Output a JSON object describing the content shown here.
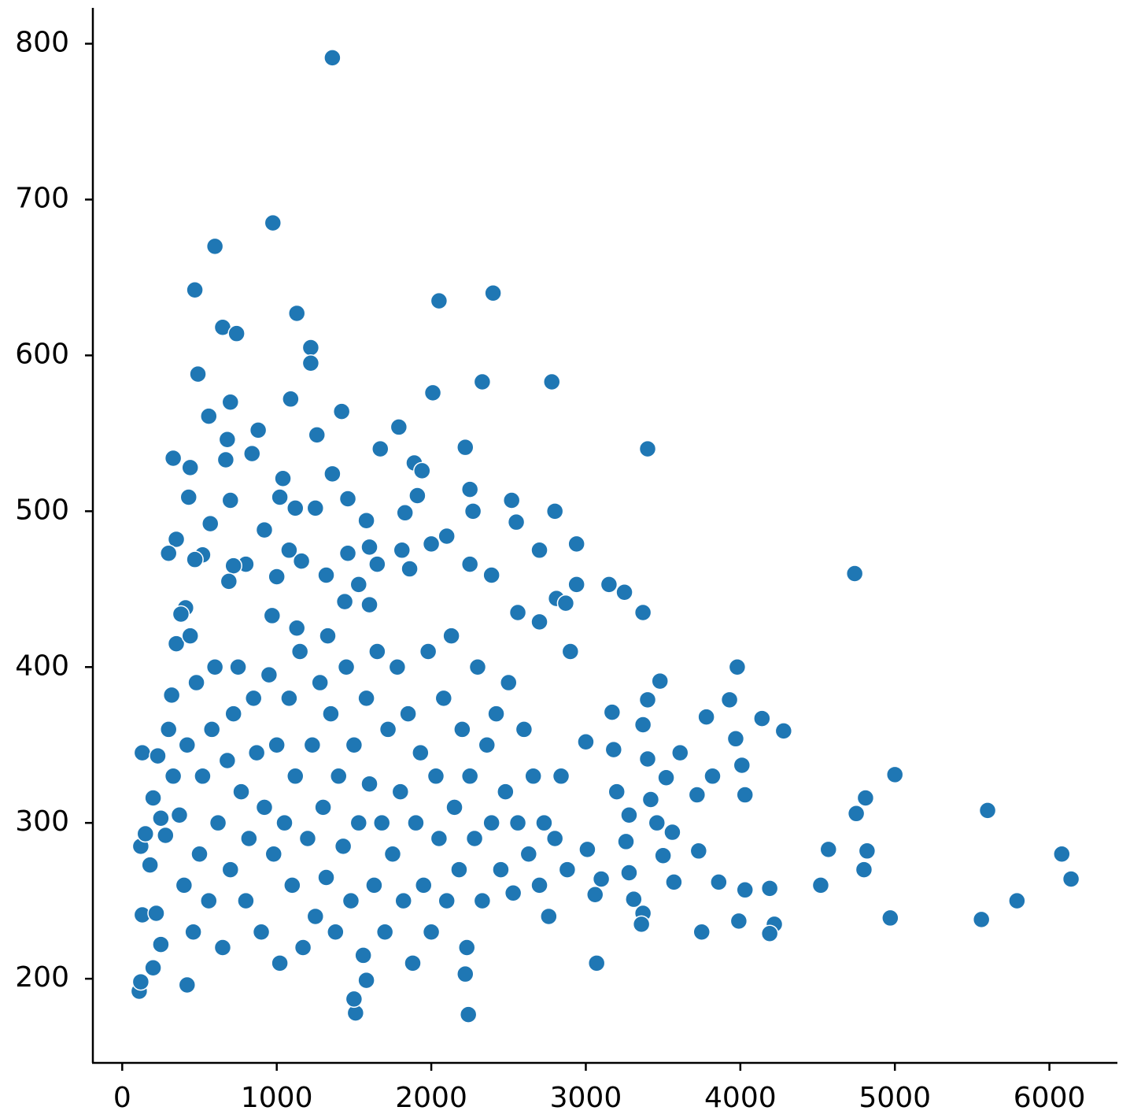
{
  "chart_data": {
    "type": "scatter",
    "color": "#1f77b4",
    "x": [
      1360,
      975,
      600,
      470,
      2050,
      2400,
      1130,
      650,
      740,
      1220,
      1220,
      490,
      2330,
      2780,
      2010,
      1090,
      700,
      560,
      1420,
      1790,
      880,
      1260,
      680,
      3400,
      1670,
      2220,
      840,
      330,
      670,
      440,
      1890,
      1940,
      1360,
      1040,
      2250,
      430,
      1020,
      1460,
      2520,
      1910,
      700,
      1120,
      1250,
      2270,
      2800,
      1830,
      1580,
      2550,
      920,
      570,
      2100,
      350,
      2000,
      2940,
      1600,
      1080,
      2700,
      300,
      1810,
      1460,
      520,
      470,
      1160,
      800,
      720,
      1650,
      2250,
      4740,
      2390,
      1860,
      1320,
      1000,
      690,
      2940,
      3150,
      1530,
      3250,
      2810,
      2870,
      1600,
      1440,
      410,
      3370,
      2560,
      380,
      970,
      1130,
      1330,
      2700,
      3980,
      3930,
      3400,
      3480,
      4140,
      4280,
      3780,
      3170,
      3370,
      3610,
      4010,
      3180,
      3400,
      3000,
      3520,
      3820,
      3970,
      5000,
      4810,
      4750,
      5600,
      4030,
      3720,
      3200,
      3280,
      3420,
      3460,
      3560,
      3730,
      4570,
      4800,
      4820,
      3010,
      6080,
      6140,
      3260,
      3280,
      3500,
      3860,
      4030,
      4190,
      3570,
      4520,
      3310,
      3370,
      3360,
      3100,
      3060,
      5790,
      4970,
      5560,
      4220,
      3990,
      3750,
      4190,
      3070,
      2240,
      1510,
      1500,
      420,
      110,
      120,
      200,
      1580,
      2220,
      130,
      120,
      150,
      130,
      180,
      200,
      230,
      250,
      220,
      250,
      280,
      300,
      320,
      330,
      350,
      370,
      400,
      420,
      440,
      460,
      480,
      500,
      520,
      560,
      580,
      600,
      620,
      650,
      680,
      700,
      720,
      750,
      770,
      800,
      820,
      850,
      870,
      900,
      920,
      950,
      980,
      1000,
      1020,
      1050,
      1080,
      1100,
      1120,
      1150,
      1170,
      1200,
      1230,
      1250,
      1280,
      1300,
      1320,
      1350,
      1380,
      1400,
      1430,
      1450,
      1480,
      1500,
      1530,
      1560,
      1580,
      1600,
      1630,
      1650,
      1680,
      1700,
      1720,
      1750,
      1780,
      1800,
      1820,
      1850,
      1880,
      1900,
      1930,
      1950,
      1980,
      2000,
      2030,
      2050,
      2080,
      2100,
      2130,
      2150,
      2180,
      2200,
      2230,
      2250,
      2280,
      2300,
      2330,
      2360,
      2390,
      2420,
      2450,
      2480,
      2500,
      2530,
      2560,
      2600,
      2630,
      2660,
      2700,
      2730,
      2760,
      2800,
      2840,
      2880,
      2900
    ],
    "values": [
      791,
      685,
      670,
      642,
      635,
      640,
      627,
      618,
      614,
      605,
      595,
      588,
      583,
      583,
      576,
      572,
      570,
      561,
      564,
      554,
      552,
      549,
      546,
      540,
      540,
      541,
      537,
      534,
      533,
      528,
      531,
      526,
      524,
      521,
      514,
      509,
      509,
      508,
      507,
      510,
      507,
      502,
      502,
      500,
      500,
      499,
      494,
      493,
      488,
      492,
      484,
      482,
      479,
      479,
      477,
      475,
      475,
      473,
      475,
      473,
      472,
      469,
      468,
      466,
      465,
      466,
      466,
      460,
      459,
      463,
      459,
      458,
      455,
      453,
      453,
      453,
      448,
      444,
      441,
      440,
      442,
      438,
      435,
      435,
      434,
      433,
      425,
      420,
      429,
      400,
      379,
      379,
      391,
      367,
      359,
      368,
      371,
      363,
      345,
      337,
      347,
      341,
      352,
      329,
      330,
      354,
      331,
      316,
      306,
      308,
      318,
      318,
      320,
      305,
      315,
      300,
      294,
      282,
      283,
      270,
      282,
      283,
      280,
      264,
      288,
      268,
      279,
      262,
      257,
      258,
      262,
      260,
      251,
      242,
      235,
      264,
      254,
      250,
      239,
      238,
      235,
      237,
      230,
      229,
      210,
      177,
      178,
      187,
      196,
      192,
      198,
      207,
      199,
      203,
      345,
      285,
      293,
      241,
      273,
      316,
      343,
      303,
      242,
      222,
      292,
      360,
      382,
      330,
      415,
      305,
      260,
      350,
      420,
      230,
      390,
      280,
      330,
      250,
      360,
      400,
      300,
      220,
      340,
      270,
      370,
      400,
      320,
      250,
      290,
      380,
      345,
      230,
      310,
      395,
      280,
      350,
      210,
      300,
      380,
      260,
      330,
      410,
      220,
      290,
      350,
      240,
      390,
      310,
      265,
      370,
      230,
      330,
      285,
      400,
      250,
      350,
      300,
      215,
      380,
      325,
      260,
      410,
      300,
      230,
      360,
      280,
      400,
      320,
      250,
      370,
      210,
      300,
      345,
      260,
      410,
      230,
      330,
      290,
      380,
      250,
      420,
      310,
      270,
      360,
      220,
      330,
      290,
      400,
      250,
      350,
      300,
      370,
      270,
      320,
      390,
      255,
      300,
      360,
      280,
      330,
      260,
      300,
      240,
      290,
      330,
      270,
      410
    ],
    "xlim": [
      -190,
      6440
    ],
    "ylim": [
      146,
      823
    ],
    "xticks": [
      0,
      1000,
      2000,
      3000,
      4000,
      5000,
      6000
    ],
    "yticks": [
      200,
      300,
      400,
      500,
      600,
      700,
      800
    ]
  }
}
